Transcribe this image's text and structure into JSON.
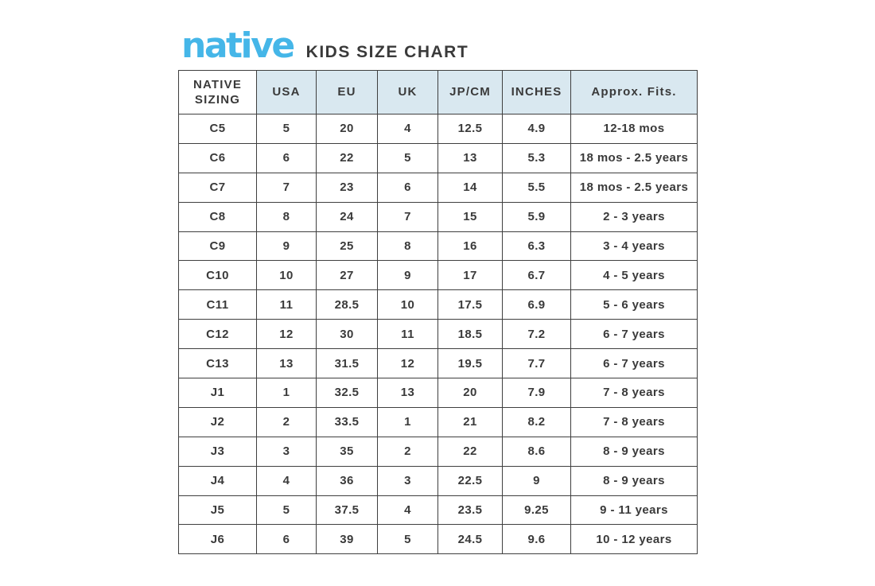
{
  "header": {
    "brand": "native",
    "title": "KIDS SIZE CHART"
  },
  "theme": {
    "brand_blue": "#45b6e8",
    "header_bg": "#d9e8f0",
    "text": "#3a3a3a",
    "border": "#3f3f3f",
    "background": "#ffffff"
  },
  "chart_data": {
    "type": "table",
    "title": "KIDS SIZE CHART",
    "columns": [
      "NATIVE SIZING",
      "USA",
      "EU",
      "UK",
      "JP/CM",
      "INCHES",
      "Approx. Fits."
    ],
    "rows": [
      [
        "C5",
        "5",
        "20",
        "4",
        "12.5",
        "4.9",
        "12-18 mos"
      ],
      [
        "C6",
        "6",
        "22",
        "5",
        "13",
        "5.3",
        "18 mos - 2.5 years"
      ],
      [
        "C7",
        "7",
        "23",
        "6",
        "14",
        "5.5",
        "18 mos - 2.5 years"
      ],
      [
        "C8",
        "8",
        "24",
        "7",
        "15",
        "5.9",
        "2 - 3 years"
      ],
      [
        "C9",
        "9",
        "25",
        "8",
        "16",
        "6.3",
        "3 - 4 years"
      ],
      [
        "C10",
        "10",
        "27",
        "9",
        "17",
        "6.7",
        "4 - 5 years"
      ],
      [
        "C11",
        "11",
        "28.5",
        "10",
        "17.5",
        "6.9",
        "5 - 6 years"
      ],
      [
        "C12",
        "12",
        "30",
        "11",
        "18.5",
        "7.2",
        "6 - 7 years"
      ],
      [
        "C13",
        "13",
        "31.5",
        "12",
        "19.5",
        "7.7",
        "6 - 7 years"
      ],
      [
        "J1",
        "1",
        "32.5",
        "13",
        "20",
        "7.9",
        "7 - 8 years"
      ],
      [
        "J2",
        "2",
        "33.5",
        "1",
        "21",
        "8.2",
        "7 - 8 years"
      ],
      [
        "J3",
        "3",
        "35",
        "2",
        "22",
        "8.6",
        "8 - 9 years"
      ],
      [
        "J4",
        "4",
        "36",
        "3",
        "22.5",
        "9",
        "8 - 9 years"
      ],
      [
        "J5",
        "5",
        "37.5",
        "4",
        "23.5",
        "9.25",
        "9 - 11 years"
      ],
      [
        "J6",
        "6",
        "39",
        "5",
        "24.5",
        "9.6",
        "10 - 12 years"
      ]
    ]
  }
}
